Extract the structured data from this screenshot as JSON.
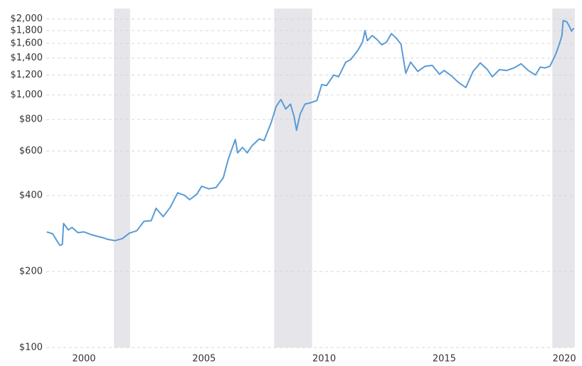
{
  "chart_data": {
    "type": "line",
    "log_scale": true,
    "grid": true,
    "x": [
      1998.45,
      1998.7,
      1998.9,
      1999.0,
      1999.1,
      1999.15,
      1999.35,
      1999.5,
      1999.75,
      2000.0,
      2000.3,
      2000.6,
      2000.8,
      2001.0,
      2001.3,
      2001.6,
      2001.9,
      2002.2,
      2002.5,
      2002.8,
      2003.0,
      2003.3,
      2003.6,
      2003.9,
      2004.2,
      2004.4,
      2004.7,
      2004.9,
      2005.2,
      2005.5,
      2005.8,
      2006.0,
      2006.3,
      2006.4,
      2006.6,
      2006.8,
      2007.0,
      2007.3,
      2007.5,
      2007.8,
      2008.0,
      2008.2,
      2008.4,
      2008.6,
      2008.75,
      2008.85,
      2009.0,
      2009.2,
      2009.4,
      2009.7,
      2009.9,
      2010.1,
      2010.4,
      2010.6,
      2010.9,
      2011.1,
      2011.4,
      2011.6,
      2011.7,
      2011.8,
      2012.0,
      2012.2,
      2012.4,
      2012.6,
      2012.8,
      2013.0,
      2013.2,
      2013.4,
      2013.6,
      2013.9,
      2014.2,
      2014.5,
      2014.8,
      2015.0,
      2015.3,
      2015.6,
      2015.9,
      2016.2,
      2016.5,
      2016.8,
      2017.0,
      2017.3,
      2017.6,
      2017.9,
      2018.2,
      2018.5,
      2018.8,
      2019.0,
      2019.2,
      2019.4,
      2019.6,
      2019.7,
      2019.8,
      2019.9,
      2019.95,
      2020.1,
      2020.2,
      2020.3,
      2020.4
    ],
    "series": [
      {
        "color": "#5b9bd5",
        "values": [
          287,
          282,
          262,
          254,
          256,
          310,
          292,
          299,
          285,
          287,
          280,
          275,
          272,
          268,
          265,
          270,
          284,
          290,
          316,
          318,
          356,
          330,
          360,
          410,
          400,
          385,
          405,
          435,
          425,
          430,
          470,
          553,
          667,
          590,
          620,
          590,
          630,
          670,
          660,
          780,
          900,
          960,
          880,
          920,
          820,
          725,
          840,
          920,
          930,
          950,
          1100,
          1090,
          1200,
          1180,
          1350,
          1380,
          1500,
          1620,
          1800,
          1640,
          1720,
          1660,
          1580,
          1620,
          1750,
          1680,
          1590,
          1220,
          1350,
          1240,
          1300,
          1310,
          1210,
          1250,
          1190,
          1120,
          1070,
          1240,
          1340,
          1260,
          1180,
          1260,
          1250,
          1280,
          1330,
          1250,
          1200,
          1290,
          1280,
          1300,
          1420,
          1500,
          1600,
          1720,
          1970,
          1950,
          1880,
          1790,
          1840
        ]
      }
    ],
    "shaded_ranges": [
      [
        2001.25,
        2001.92
      ],
      [
        2007.92,
        2009.5
      ],
      [
        2019.5,
        2020.44
      ]
    ],
    "shade_color": "#e6e6ea",
    "xlim": [
      1998.43,
      2020.44
    ],
    "xticks": [
      2000,
      2005,
      2010,
      2015,
      2020
    ],
    "ylim": [
      100,
      2200
    ],
    "yticks": [
      {
        "value": 100,
        "label": "$100"
      },
      {
        "value": 200,
        "label": "$200"
      },
      {
        "value": 400,
        "label": "$400"
      },
      {
        "value": 600,
        "label": "$600"
      },
      {
        "value": 800,
        "label": "$800"
      },
      {
        "value": 1000,
        "label": "$1,000"
      },
      {
        "value": 1200,
        "label": "$1,200"
      },
      {
        "value": 1400,
        "label": "$1,400"
      },
      {
        "value": 1600,
        "label": "$1,600"
      },
      {
        "value": 1800,
        "label": "$1,800"
      },
      {
        "value": 2000,
        "label": "$2,000"
      }
    ]
  }
}
